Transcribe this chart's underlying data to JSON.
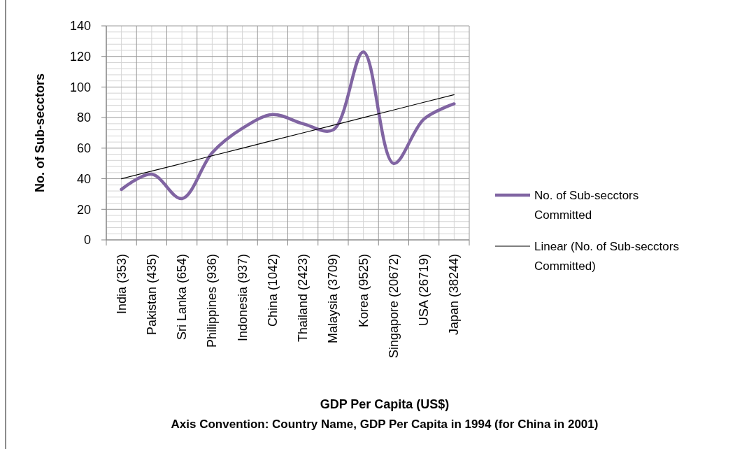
{
  "chart_data": {
    "type": "line",
    "ylabel": "No. of Sub-secctors",
    "xlabel": "GDP Per Capita (US$)",
    "annotations": [
      "Axis Convention: Country Name, GDP Per Capita in 1994 (for China in 2001)"
    ],
    "categories": [
      "India (353)",
      "Pakistan (435)",
      "Sri Lanka (654)",
      "Philippines (936)",
      "Indonesia (937)",
      "China (1042)",
      "Thailand (2423)",
      "Malaysia (3709)",
      "Korea (9525)",
      "Singapore (20672)",
      "USA (26719)",
      "Japan (38244)"
    ],
    "series": [
      {
        "name": "No. of Sub-secctors Committed",
        "color": "#8064a2",
        "values": [
          33,
          43,
          27,
          57,
          73,
          82,
          76,
          72,
          123,
          50,
          79,
          89
        ]
      },
      {
        "name": "Linear (No. of Sub-secctors Committed)",
        "color": "#000000",
        "values": [
          40,
          45,
          50,
          55,
          60,
          65,
          70,
          75,
          80,
          85,
          90,
          95
        ]
      }
    ],
    "ylim": [
      0,
      140
    ],
    "yticks": [
      0,
      20,
      40,
      60,
      80,
      100,
      120,
      140
    ],
    "grid": true,
    "legend": "right"
  }
}
